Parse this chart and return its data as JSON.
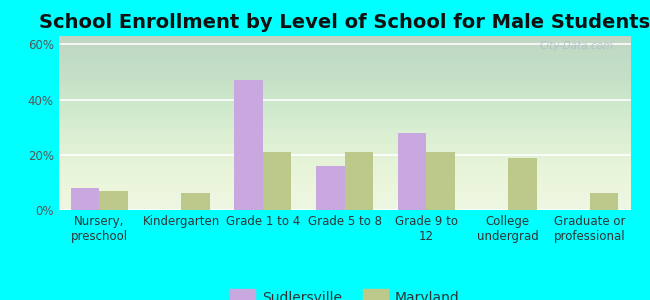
{
  "title": "School Enrollment by Level of School for Male Students",
  "categories": [
    "Nursery,\npreschool",
    "Kindergarten",
    "Grade 1 to 4",
    "Grade 5 to 8",
    "Grade 9 to\n12",
    "College\nundergrad",
    "Graduate or\nprofessional"
  ],
  "sudlersville": [
    8,
    0,
    47,
    16,
    28,
    0,
    0
  ],
  "maryland": [
    7,
    6,
    21,
    21,
    21,
    19,
    6
  ],
  "sudlersville_color": "#c9a8e0",
  "maryland_color": "#bdc98a",
  "background_color": "#00ffff",
  "yticks": [
    0,
    20,
    40,
    60
  ],
  "ylim": [
    0,
    63
  ],
  "bar_width": 0.35,
  "legend_labels": [
    "Sudlersville",
    "Maryland"
  ],
  "watermark": "City-Data.com",
  "title_fontsize": 14,
  "tick_fontsize": 8.5,
  "legend_fontsize": 10
}
